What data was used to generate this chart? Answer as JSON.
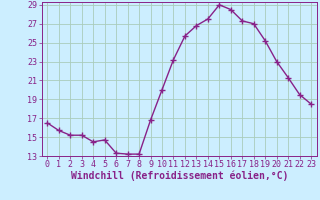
{
  "x": [
    0,
    1,
    2,
    3,
    4,
    5,
    6,
    7,
    8,
    9,
    10,
    11,
    12,
    13,
    14,
    15,
    16,
    17,
    18,
    19,
    20,
    21,
    22,
    23
  ],
  "y": [
    16.5,
    15.7,
    15.2,
    15.2,
    14.5,
    14.7,
    13.3,
    13.2,
    13.2,
    16.8,
    20.0,
    23.2,
    25.7,
    26.8,
    27.5,
    29.0,
    28.5,
    27.3,
    27.0,
    25.2,
    23.0,
    21.3,
    19.5,
    18.5
  ],
  "line_color": "#882288",
  "marker": "+",
  "marker_size": 4,
  "bg_color": "#cceeff",
  "grid_color": "#aaccbb",
  "xlabel": "Windchill (Refroidissement éolien,°C)",
  "ylim_min": 13,
  "ylim_max": 29,
  "xlim_min": 0,
  "xlim_max": 23,
  "yticks": [
    13,
    15,
    17,
    19,
    21,
    23,
    25,
    27,
    29
  ],
  "xticks": [
    0,
    1,
    2,
    3,
    4,
    5,
    6,
    7,
    8,
    9,
    10,
    11,
    12,
    13,
    14,
    15,
    16,
    17,
    18,
    19,
    20,
    21,
    22,
    23
  ],
  "tick_color": "#882288",
  "tick_fontsize": 6,
  "xlabel_fontsize": 7,
  "line_width": 1.0
}
